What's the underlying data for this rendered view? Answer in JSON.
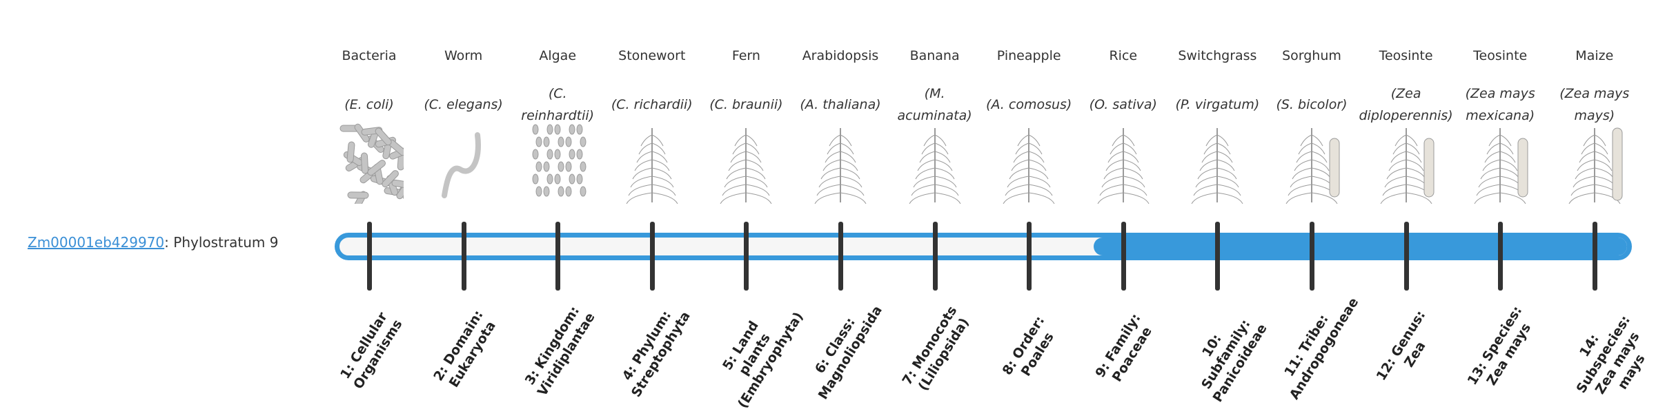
{
  "gene": {
    "id": "Zm00001eb429970",
    "suffix": ": Phylostratum 9",
    "phylostratum": 9
  },
  "colors": {
    "bar": "#3899db",
    "link": "#3a8fd6",
    "tick": "#333333",
    "empty": "#f6f6f6"
  },
  "strata": [
    {
      "common": "Bacteria",
      "scientific": "(E. coli)",
      "label": "1: Cellular Organisms",
      "icon": "bacteria-icon"
    },
    {
      "common": "Worm",
      "scientific": "(C. elegans)",
      "label": "2: Domain: Eukaryota",
      "icon": "worm-icon"
    },
    {
      "common": "Algae",
      "scientific": "(C. reinhardtii)",
      "label": "3: Kingdom: Viridiplantae",
      "icon": "algae-icon"
    },
    {
      "common": "Stonewort",
      "scientific": "(C. richardii)",
      "label": "4: Phylum: Streptophyta",
      "icon": "stonewort-icon"
    },
    {
      "common": "Fern",
      "scientific": "(C. braunii)",
      "label": "5: Land plants (Embryophyta)",
      "icon": "fern-icon"
    },
    {
      "common": "Arabidopsis",
      "scientific": "(A. thaliana)",
      "label": "6: Class: Magnoliopsida",
      "icon": "arabidopsis-icon"
    },
    {
      "common": "Banana",
      "scientific": "(M. acuminata)",
      "label": "7: Monocots (Liliopsida)",
      "icon": "banana-icon"
    },
    {
      "common": "Pineapple",
      "scientific": "(A. comosus)",
      "label": "8: Order: Poales",
      "icon": "pineapple-icon"
    },
    {
      "common": "Rice",
      "scientific": "(O. sativa)",
      "label": "9: Family: Poaceae",
      "icon": "rice-icon"
    },
    {
      "common": "Switchgrass",
      "scientific": "(P. virgatum)",
      "label": "10: Subfamily: Panicoideae",
      "icon": "switchgrass-icon"
    },
    {
      "common": "Sorghum",
      "scientific": "(S. bicolor)",
      "label": "11: Tribe: Andropogoneae",
      "icon": "sorghum-icon"
    },
    {
      "common": "Teosinte",
      "scientific": "(Zea diploperennis)",
      "label": "12: Genus: Zea",
      "icon": "teosinte-icon"
    },
    {
      "common": "Teosinte",
      "scientific": "(Zea mays mexicana)",
      "label": "13: Species: Zea mays",
      "icon": "teosinte-mexicana-icon"
    },
    {
      "common": "Maize",
      "scientific": "(Zea mays mays)",
      "label": "14: Subspecies: Zea mays mays",
      "icon": "maize-icon"
    }
  ]
}
